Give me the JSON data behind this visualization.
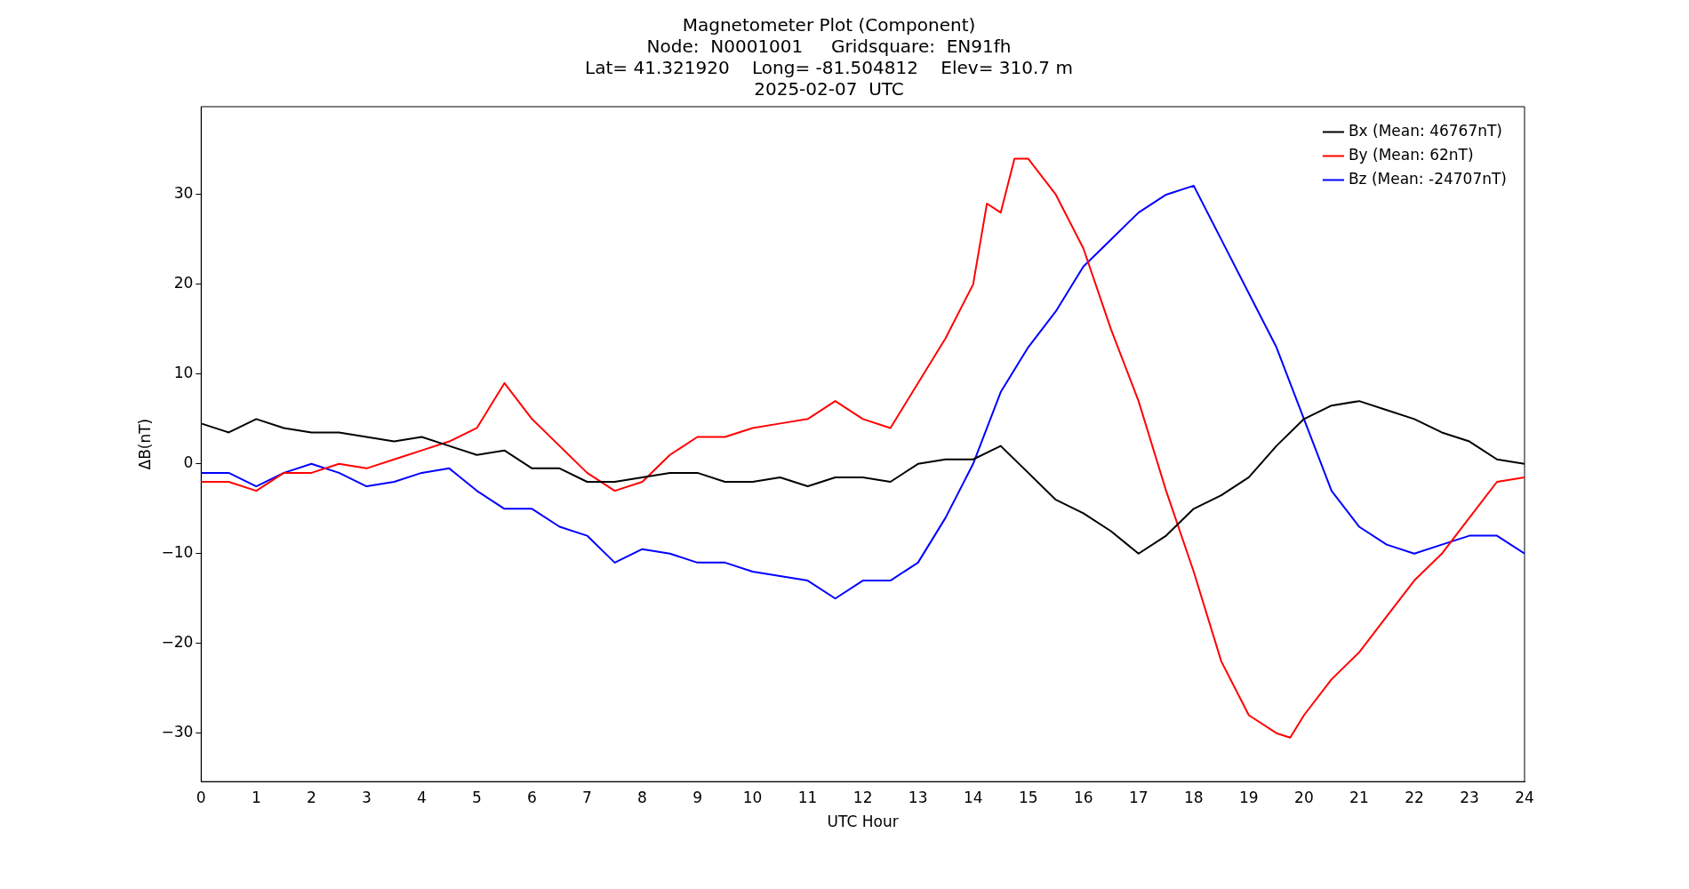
{
  "chart_data": {
    "type": "line",
    "title": "Magnetometer Plot (Component)",
    "subtitle": "Node:  N0001001     Gridsquare:  EN91fh\nLat= 41.321920    Long= -81.504812    Elev= 310.7 m\n2025-02-07  UTC",
    "xlabel": "UTC Hour",
    "ylabel": "ΔB(nT)",
    "x": [
      0,
      0.5,
      1,
      1.5,
      2,
      2.5,
      3,
      3.5,
      4,
      4.5,
      5,
      5.5,
      6,
      6.5,
      7,
      7.5,
      8,
      8.5,
      9,
      9.5,
      10,
      10.5,
      11,
      11.5,
      12,
      12.5,
      13,
      13.5,
      14,
      14.5,
      15,
      15.5,
      16,
      16.5,
      17,
      17.5,
      18,
      18.5,
      19,
      19.5,
      20,
      20.5,
      21,
      21.5,
      22,
      22.5,
      23,
      23.5,
      24
    ],
    "series": [
      {
        "name": "Bx (Mean: 46767nT)",
        "color": "#000000",
        "values": [
          4.5,
          3.5,
          5,
          4,
          3.5,
          3.5,
          3,
          2.5,
          3,
          2,
          1,
          1.5,
          -0.5,
          -0.5,
          -2,
          -2,
          -1.5,
          -1,
          -1,
          -2,
          -2,
          -1.5,
          -2.5,
          -1.5,
          -1.5,
          -2,
          0,
          0.5,
          0.5,
          2,
          -1,
          -4,
          -5.5,
          -7.5,
          -10,
          -8,
          -5,
          -3.5,
          -1.5,
          2,
          5,
          6.5,
          7,
          6,
          5,
          3.5,
          2.5,
          0.5,
          0
        ]
      },
      {
        "name": "By (Mean: 62nT)",
        "color": "#ff0000",
        "x": [
          0,
          0.5,
          1,
          1.5,
          2,
          2.5,
          3,
          3.5,
          4,
          4.5,
          5,
          5.5,
          6,
          6.5,
          7,
          7.5,
          8,
          8.5,
          9,
          9.5,
          10,
          10.5,
          11,
          11.5,
          12,
          12.5,
          13,
          13.5,
          14,
          14.25,
          14.5,
          14.75,
          15,
          15.5,
          16,
          16.5,
          17,
          17.5,
          18,
          18.5,
          19,
          19.5,
          19.75,
          20,
          20.5,
          21,
          21.5,
          22,
          22.5,
          23,
          23.5,
          24
        ],
        "values": [
          -2,
          -2,
          -3,
          -1,
          -1,
          0,
          -0.5,
          0.5,
          1.5,
          2.5,
          4,
          9,
          5,
          2,
          -1,
          -3,
          -2,
          1,
          3,
          3,
          4,
          4.5,
          5,
          7,
          5,
          4,
          9,
          14,
          20,
          29,
          28,
          34,
          34,
          30,
          24,
          15,
          7,
          -3,
          -12,
          -22,
          -28,
          -30,
          -30.5,
          -28,
          -24,
          -21,
          -17,
          -13,
          -10,
          -6,
          -2,
          -1.5
        ]
      },
      {
        "name": "Bz (Mean: -24707nT)",
        "color": "#0000ff",
        "values": [
          -1,
          -1,
          -2.5,
          -1,
          0,
          -1,
          -2.5,
          -2,
          -1,
          -0.5,
          -3,
          -5,
          -5,
          -7,
          -8,
          -11,
          -9.5,
          -10,
          -11,
          -11,
          -12,
          -12.5,
          -13,
          -15,
          -13,
          -13,
          -11,
          -6,
          0,
          8,
          13,
          17,
          22,
          25,
          28,
          30,
          31,
          25,
          19,
          13,
          5,
          -3,
          -7,
          -9,
          -10,
          -9,
          -8,
          -8,
          -10
        ]
      }
    ],
    "xlim": [
      0,
      24
    ],
    "xticks": [
      0,
      1,
      2,
      3,
      4,
      5,
      6,
      7,
      8,
      9,
      10,
      11,
      12,
      13,
      14,
      15,
      16,
      17,
      18,
      19,
      20,
      21,
      22,
      23,
      24
    ],
    "ylim": [
      -35.4,
      39.8
    ],
    "yticks": [
      -30,
      -20,
      -10,
      0,
      10,
      20,
      30
    ],
    "legend": "top right",
    "grid": false,
    "marker": "none",
    "line_style": "solid"
  }
}
